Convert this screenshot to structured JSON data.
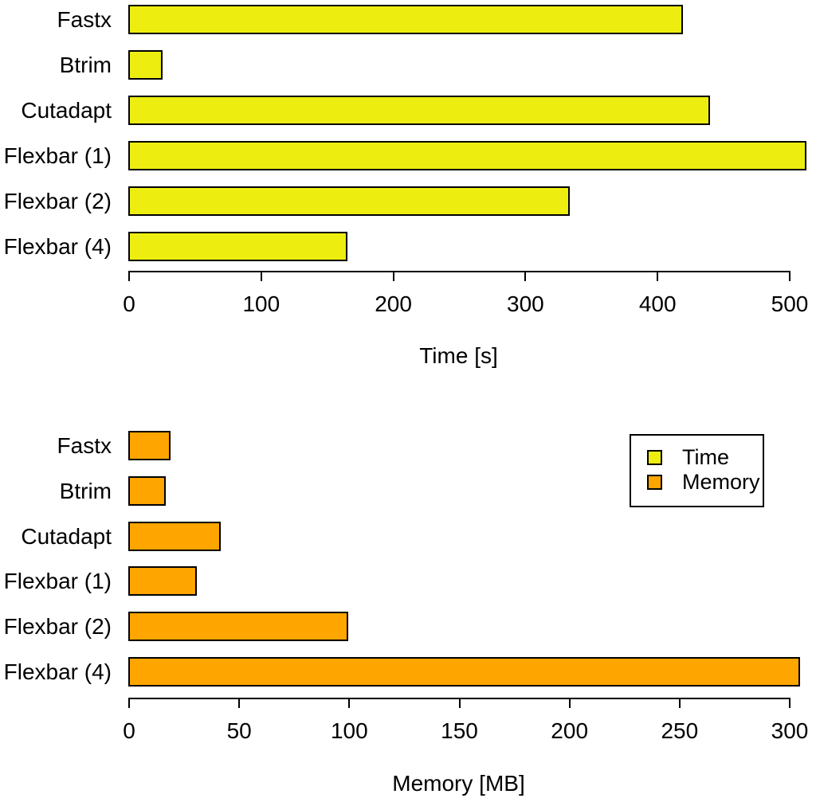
{
  "figure": {
    "background_color": "#ffffff",
    "text_color": "#000000"
  },
  "chart_data": [
    {
      "type": "bar",
      "orientation": "horizontal",
      "title": "",
      "xlabel": "Time [s]",
      "ylabel": "",
      "categories": [
        "Fastx",
        "Btrim",
        "Cutadapt",
        "Flexbar (1)",
        "Flexbar (2)",
        "Flexbar (4)"
      ],
      "values": [
        420,
        26,
        440,
        513,
        334,
        166
      ],
      "xlim": [
        0,
        500
      ],
      "xticks": [
        0,
        100,
        200,
        300,
        400,
        500
      ],
      "bar_color": "#EDED10",
      "bar_border_color": "#000000",
      "grid": false,
      "legend_position": "none"
    },
    {
      "type": "bar",
      "orientation": "horizontal",
      "title": "",
      "xlabel": "Memory [MB]",
      "ylabel": "",
      "categories": [
        "Fastx",
        "Btrim",
        "Cutadapt",
        "Flexbar (1)",
        "Flexbar (2)",
        "Flexbar (4)"
      ],
      "values": [
        19,
        17,
        42,
        31,
        100,
        305
      ],
      "xlim": [
        0,
        300
      ],
      "xticks": [
        0,
        50,
        100,
        150,
        200,
        250,
        300
      ],
      "bar_color": "#FFA500",
      "bar_border_color": "#000000",
      "grid": false,
      "legend_position": "top-right"
    }
  ],
  "legend": {
    "entries": [
      {
        "label": "Time",
        "color": "#EDED10"
      },
      {
        "label": "Memory",
        "color": "#FFA500"
      }
    ]
  }
}
